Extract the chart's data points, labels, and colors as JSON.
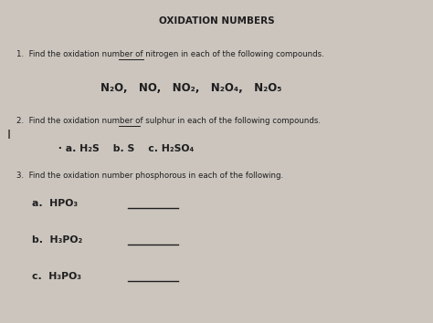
{
  "title": "OXIDATION NUMBERS",
  "bg_color": "#cbc5be",
  "text_color": "#1e1e1e",
  "title_fs": 7.5,
  "body_fs": 6.2,
  "compound_fs": 8.5,
  "q2comp_fs": 7.8,
  "q3_fs": 7.8,
  "q1_prefix": "1.  Find the oxidation number of ",
  "q1_underline": "nitrogen",
  "q1_suffix": " in each of the following compounds.",
  "compounds1": "N₂O,   NO,   NO₂,   N₂O₄,   N₂O₅",
  "q2_prefix": "2.  Find the oxidation number of ",
  "q2_underline": "sulphur",
  "q2_suffix": " in each of the following compounds.",
  "q2_compounds": " · a. H₂S    b. S    c. H₂SO₄",
  "q3_text": "3.  Find the oxidation number phosphorous in each of the following.",
  "q3a": "a.  HPO₃",
  "q3b": "b.  H₃PO₂",
  "q3c": "c.  H₃PO₃"
}
